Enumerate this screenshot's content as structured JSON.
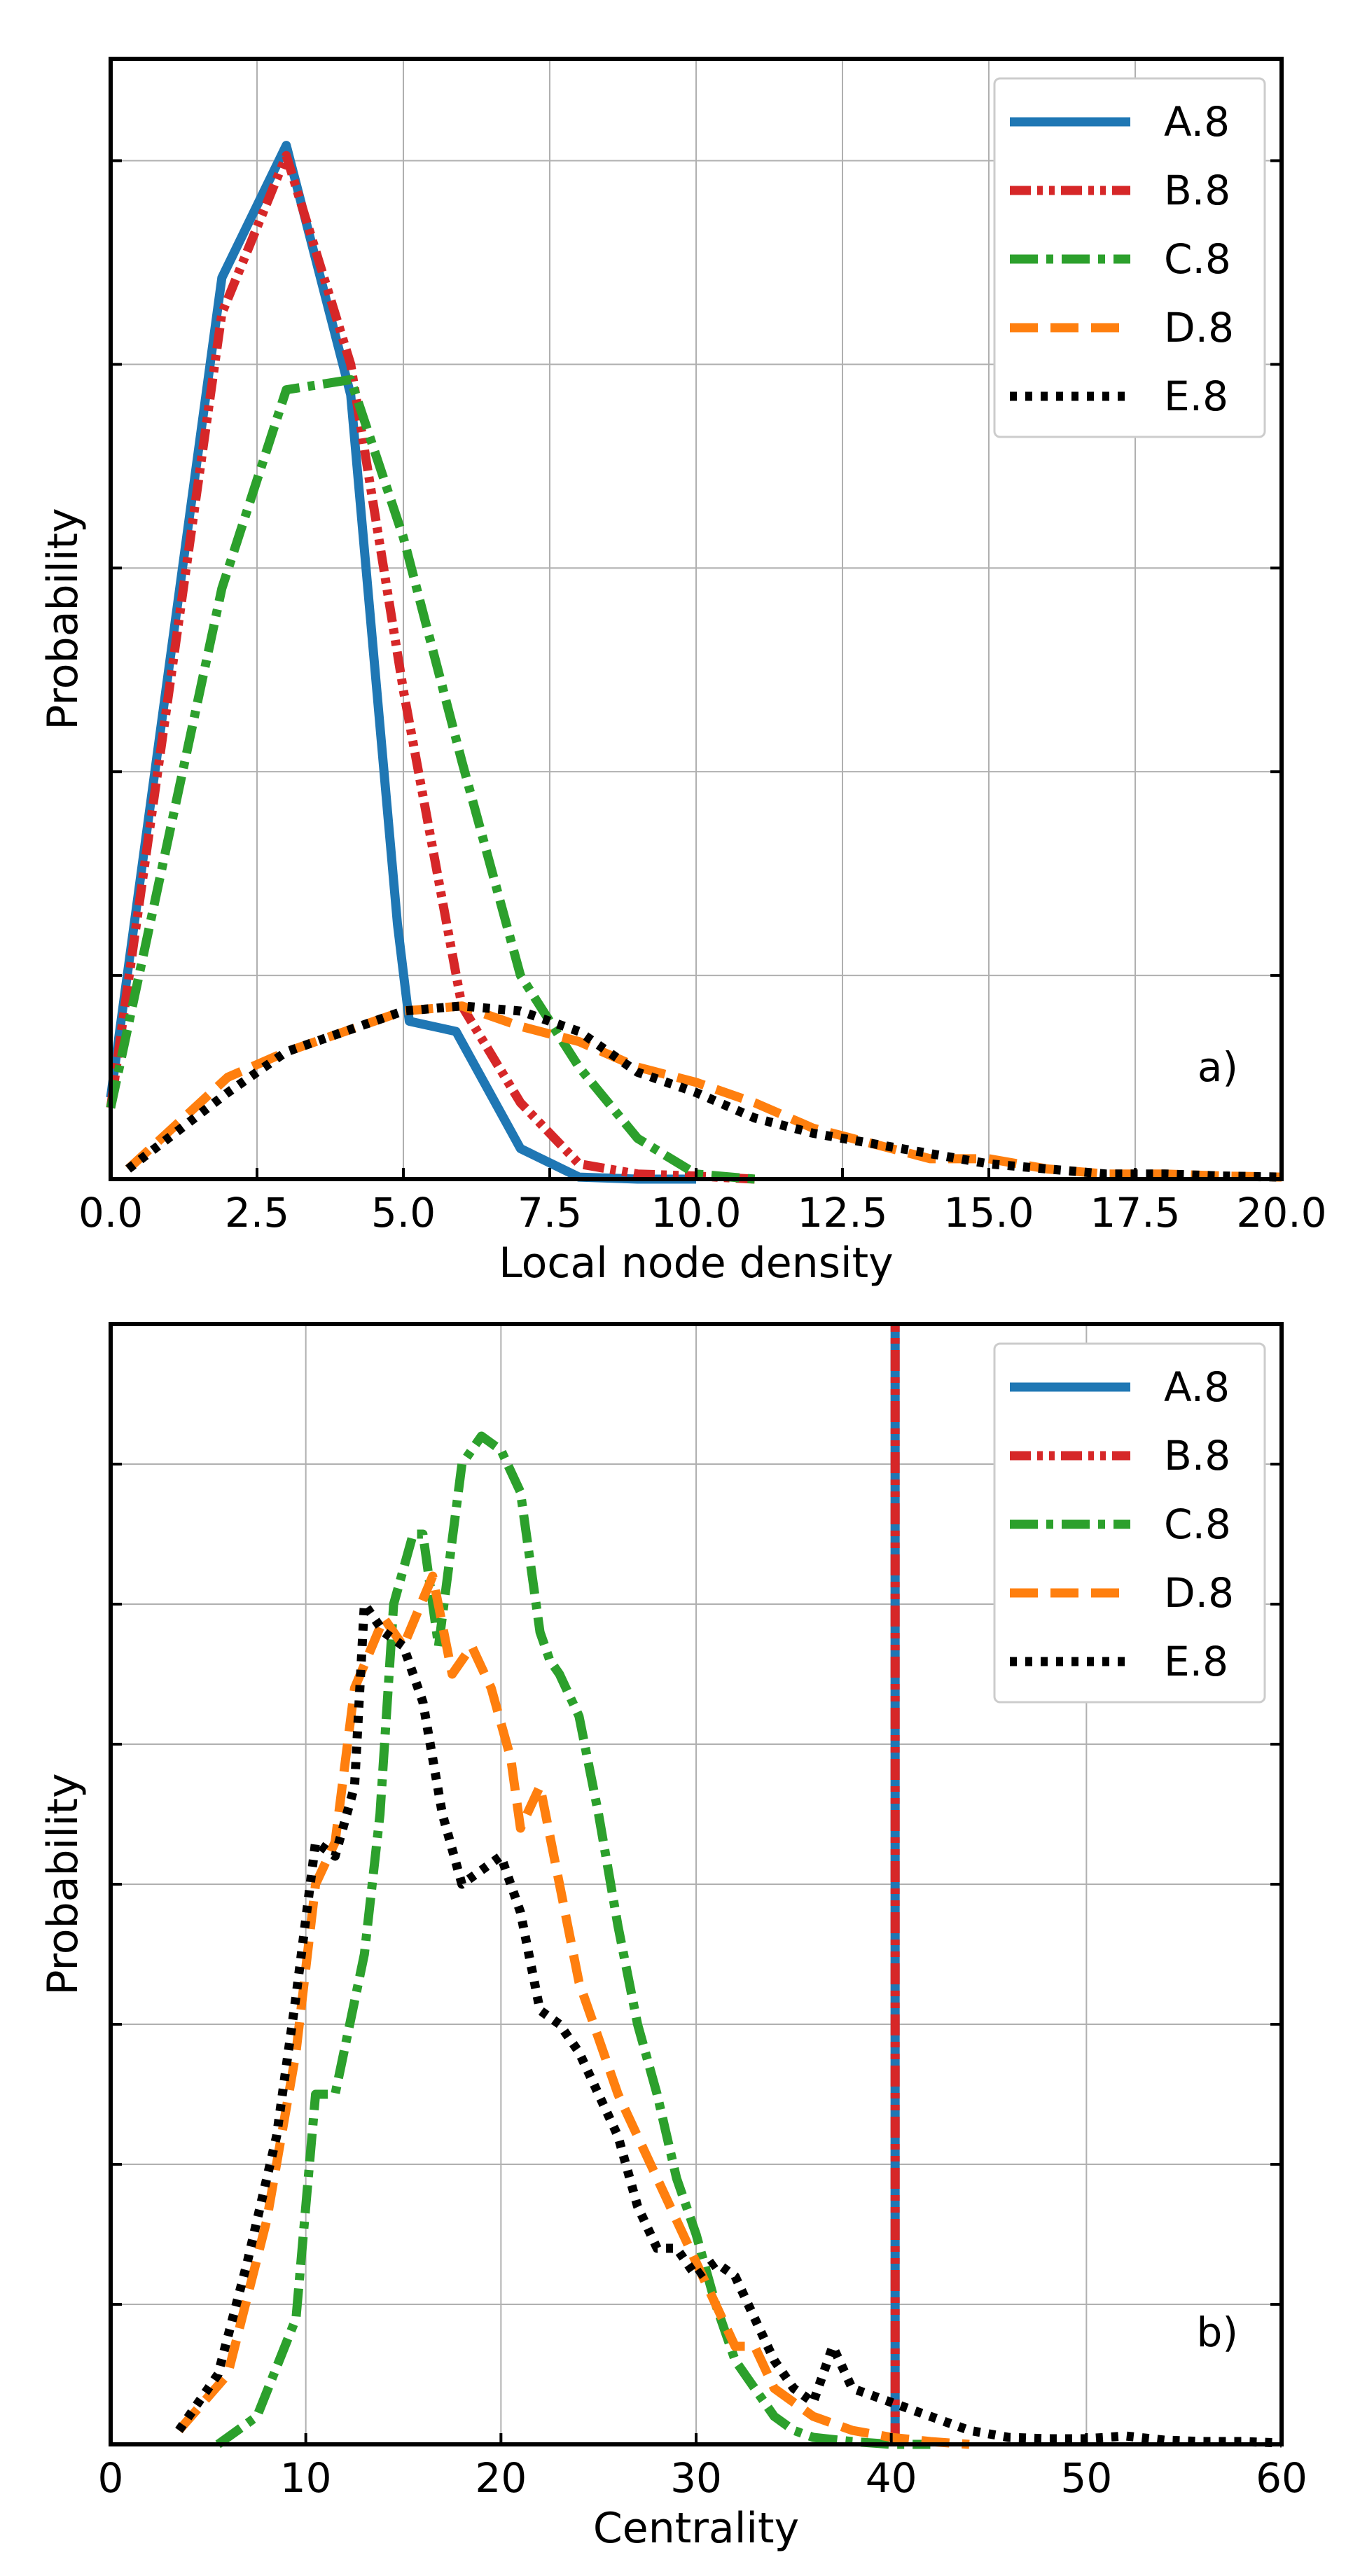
{
  "chart_data": [
    {
      "id": "a",
      "type": "line",
      "panel_label": "a)",
      "title": "",
      "xlabel": "Local node density",
      "ylabel": "Probability",
      "xlim": [
        0.0,
        20.0
      ],
      "ylim": [
        0,
        1.1
      ],
      "xticks": [
        0.0,
        2.5,
        5.0,
        7.5,
        10.0,
        12.5,
        15.0,
        17.5,
        20.0
      ],
      "xtick_labels": [
        "0.0",
        "2.5",
        "5.0",
        "7.5",
        "10.0",
        "12.5",
        "15.0",
        "17.5",
        "20.0"
      ],
      "yticks": [
        0.2,
        0.4,
        0.6,
        0.8,
        1.0
      ],
      "grid": true,
      "legend_position": "top-right",
      "series": [
        {
          "name": "A.8",
          "color": "#1f77b4",
          "style": "solid",
          "x": [
            0.0,
            1.9,
            3.0,
            4.1,
            4.9,
            5.1,
            5.9,
            7.0,
            8.0,
            9.0,
            10.0
          ],
          "y": [
            0.08,
            0.885,
            1.015,
            0.77,
            0.25,
            0.155,
            0.145,
            0.03,
            0.002,
            0.0,
            0.0
          ]
        },
        {
          "name": "B.8",
          "color": "#d62728",
          "style": "dashdotdot",
          "x": [
            0.0,
            1.9,
            3.0,
            4.1,
            5.0,
            6.0,
            7.0,
            8.0,
            9.0,
            10.0,
            11.0
          ],
          "y": [
            0.07,
            0.85,
            1.005,
            0.8,
            0.48,
            0.17,
            0.075,
            0.015,
            0.005,
            0.003,
            0.0
          ]
        },
        {
          "name": "C.8",
          "color": "#2ca02c",
          "style": "dashdot",
          "x": [
            0.0,
            1.9,
            3.0,
            4.1,
            5.0,
            6.0,
            7.0,
            8.0,
            9.0,
            10.0,
            11.0
          ],
          "y": [
            0.07,
            0.58,
            0.775,
            0.785,
            0.63,
            0.41,
            0.2,
            0.11,
            0.04,
            0.005,
            0.0
          ]
        },
        {
          "name": "D.8",
          "color": "#ff7f0e",
          "style": "dashed",
          "x": [
            0.3,
            2.0,
            3.0,
            4.0,
            5.0,
            6.0,
            7.0,
            8.0,
            9.0,
            10.0,
            11.0,
            12.0,
            13.0,
            14.0,
            15.0,
            16.0,
            17.0,
            18.0,
            19.0,
            20.0
          ],
          "y": [
            0.01,
            0.1,
            0.125,
            0.145,
            0.165,
            0.17,
            0.15,
            0.135,
            0.11,
            0.095,
            0.075,
            0.05,
            0.035,
            0.02,
            0.02,
            0.01,
            0.005,
            0.005,
            0.003,
            0.002
          ]
        },
        {
          "name": "E.8",
          "color": "#000000",
          "style": "dotted",
          "x": [
            0.3,
            2.0,
            3.0,
            4.0,
            5.0,
            6.0,
            7.0,
            8.0,
            9.0,
            10.0,
            11.0,
            12.0,
            13.0,
            14.0,
            15.0,
            16.0,
            17.0,
            18.0,
            19.0,
            20.0
          ],
          "y": [
            0.01,
            0.085,
            0.125,
            0.145,
            0.165,
            0.17,
            0.165,
            0.145,
            0.105,
            0.085,
            0.06,
            0.045,
            0.035,
            0.025,
            0.015,
            0.01,
            0.005,
            0.005,
            0.003,
            0.002
          ]
        }
      ]
    },
    {
      "id": "b",
      "type": "line",
      "panel_label": "b)",
      "title": "",
      "xlabel": "Centrality",
      "ylabel": "Probability",
      "xlim": [
        0,
        60
      ],
      "ylim": [
        0,
        0.08
      ],
      "xticks": [
        0,
        10,
        20,
        30,
        40,
        50,
        60
      ],
      "xtick_labels": [
        "0",
        "10",
        "20",
        "30",
        "40",
        "50",
        "60"
      ],
      "yticks": [
        0.01,
        0.02,
        0.03,
        0.04,
        0.05,
        0.06,
        0.07
      ],
      "grid": true,
      "legend_position": "top-right",
      "series": [
        {
          "name": "A.8",
          "color": "#1f77b4",
          "style": "solid",
          "x": [
            40.2,
            40.2
          ],
          "y": [
            0.0,
            0.08
          ]
        },
        {
          "name": "B.8",
          "color": "#d62728",
          "style": "dashdotdot",
          "x": [
            40.2,
            40.2
          ],
          "y": [
            0.0,
            0.08
          ]
        },
        {
          "name": "C.8",
          "color": "#2ca02c",
          "style": "dashdot",
          "x": [
            5.5,
            7.5,
            9.5,
            10.5,
            11.5,
            13.0,
            13.8,
            14.5,
            15.5,
            16.0,
            16.8,
            18.0,
            19.0,
            20.0,
            21.0,
            22.0,
            22.5,
            23.0,
            24.0,
            25.0,
            26.0,
            27.0,
            28.0,
            29.0,
            30.0,
            31.0,
            32.0,
            33.0,
            34.0,
            35.0,
            36.0,
            38.0,
            40.0,
            42.0
          ],
          "y": [
            0.0,
            0.002,
            0.009,
            0.025,
            0.025,
            0.035,
            0.045,
            0.06,
            0.065,
            0.065,
            0.057,
            0.07,
            0.072,
            0.071,
            0.068,
            0.058,
            0.056,
            0.055,
            0.052,
            0.045,
            0.037,
            0.03,
            0.025,
            0.019,
            0.015,
            0.01,
            0.006,
            0.004,
            0.002,
            0.001,
            0.0005,
            0.0002,
            0.0,
            0.0
          ]
        },
        {
          "name": "D.8",
          "color": "#ff7f0e",
          "style": "dashed",
          "x": [
            3.5,
            6.0,
            8.0,
            9.5,
            10.5,
            11.5,
            12.5,
            14.0,
            15.0,
            16.5,
            17.5,
            18.5,
            19.5,
            20.5,
            21.0,
            22.0,
            23.0,
            24.0,
            25.0,
            26.0,
            27.0,
            28.0,
            29.0,
            30.0,
            31.0,
            32.0,
            33.0,
            34.0,
            35.0,
            36.0,
            38.0,
            40.0,
            42.0,
            44.0
          ],
          "y": [
            0.001,
            0.005,
            0.016,
            0.028,
            0.04,
            0.043,
            0.054,
            0.059,
            0.057,
            0.062,
            0.055,
            0.057,
            0.054,
            0.049,
            0.044,
            0.047,
            0.04,
            0.033,
            0.029,
            0.025,
            0.022,
            0.019,
            0.016,
            0.013,
            0.01,
            0.007,
            0.007,
            0.004,
            0.003,
            0.002,
            0.001,
            0.0005,
            0.0002,
            0.0
          ]
        },
        {
          "name": "E.8",
          "color": "#000000",
          "style": "dotted",
          "x": [
            3.5,
            5.5,
            7.0,
            8.5,
            9.5,
            10.5,
            11.5,
            12.5,
            13.0,
            14.0,
            15.0,
            16.0,
            17.0,
            18.0,
            19.0,
            20.0,
            21.0,
            22.0,
            23.0,
            24.0,
            25.0,
            26.0,
            27.0,
            28.0,
            29.0,
            30.0,
            31.0,
            32.0,
            33.0,
            34.0,
            35.0,
            36.0,
            37.0,
            38.0,
            40.0,
            42.0,
            44.0,
            46.0,
            48.0,
            50.0,
            52.0,
            54.0,
            56.0,
            58.0,
            60.0
          ],
          "y": [
            0.001,
            0.005,
            0.013,
            0.022,
            0.032,
            0.043,
            0.042,
            0.047,
            0.06,
            0.058,
            0.057,
            0.053,
            0.045,
            0.04,
            0.041,
            0.042,
            0.038,
            0.031,
            0.03,
            0.028,
            0.025,
            0.022,
            0.017,
            0.014,
            0.014,
            0.012,
            0.013,
            0.012,
            0.009,
            0.006,
            0.004,
            0.003,
            0.007,
            0.004,
            0.003,
            0.002,
            0.001,
            0.0005,
            0.0004,
            0.0004,
            0.0006,
            0.0003,
            0.0002,
            0.0002,
            0.0001
          ]
        }
      ]
    }
  ]
}
